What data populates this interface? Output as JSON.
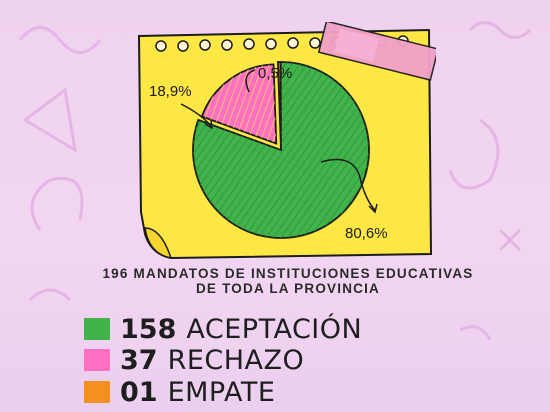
{
  "chart_data": {
    "type": "pie",
    "slices": [
      {
        "label": "ACEPTACIÓN",
        "count": "158",
        "value": 80.6,
        "percent_label": "80,6%",
        "color": "#40b44a"
      },
      {
        "label": "RECHAZO",
        "count": "37",
        "value": 18.9,
        "percent_label": "18,9%",
        "color": "#ff6fc4"
      },
      {
        "label": "EMPATE",
        "count": "01",
        "value": 0.5,
        "percent_label": "0,5%",
        "color": "#f4901e"
      }
    ],
    "title": "196 MANDATOS DE INSTITUCIONES EDUCATIVAS DE TODA LA PROVINCIA"
  },
  "colors": {
    "note": "#fde744",
    "tape": "#f2a0c8",
    "background": "#efd2ef"
  }
}
